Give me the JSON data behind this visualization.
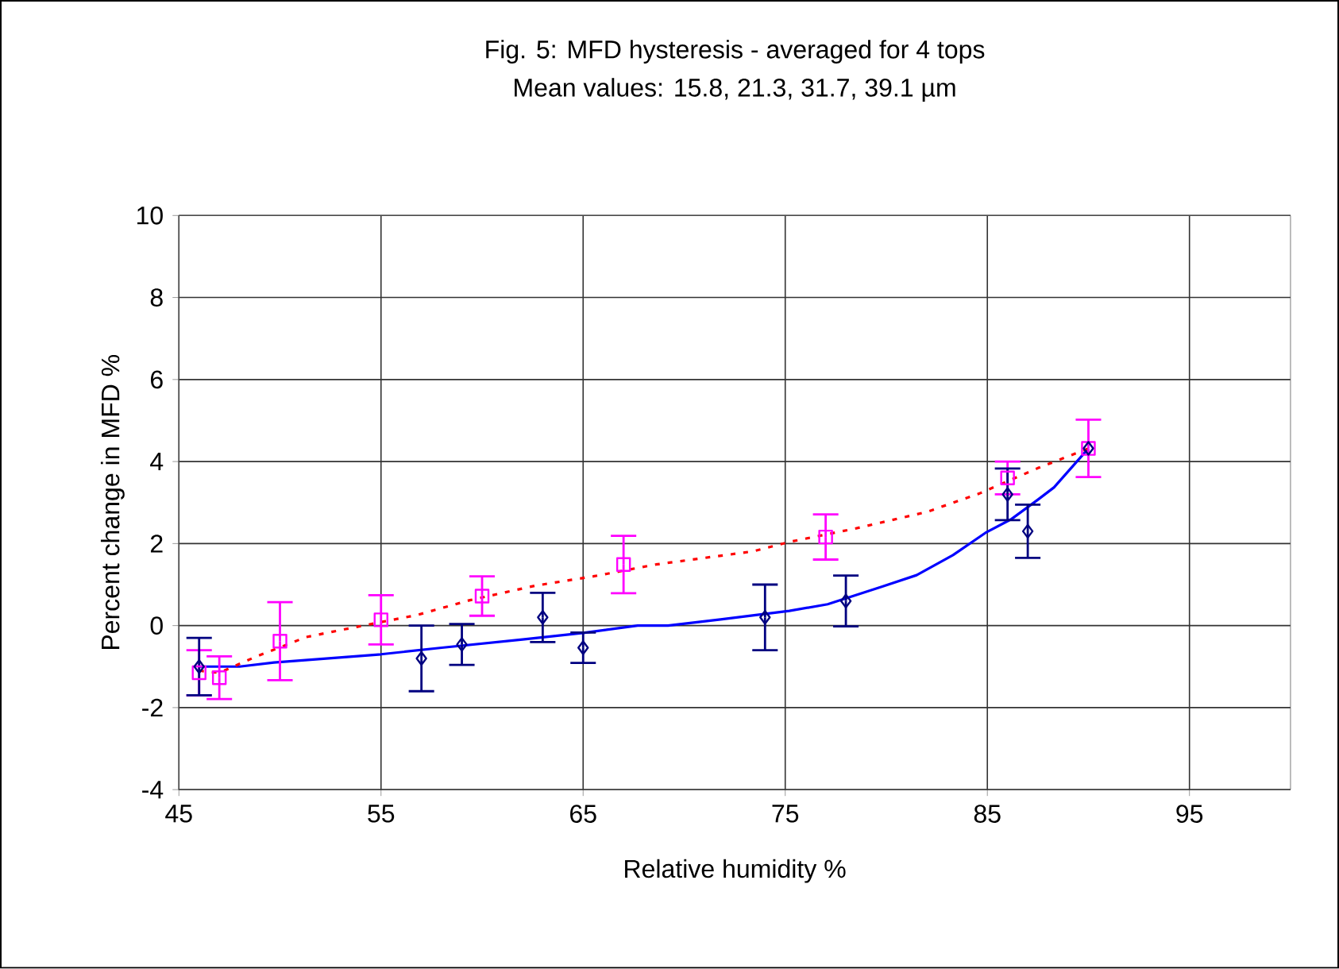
{
  "chart_data": {
    "type": "line",
    "title": "Fig. 5: MFD hysteresis - averaged for 4 tops",
    "subtitle": "Mean values: 15.8, 21.3, 31.7, 39.1 µm",
    "xlabel": "Relative humidity %",
    "ylabel": "Percent change in MFD %",
    "xlim": [
      45,
      100
    ],
    "xticks": [
      45,
      55,
      65,
      75,
      85,
      95
    ],
    "ylim": [
      -4,
      10
    ],
    "yticks": [
      -4,
      -2,
      0,
      2,
      4,
      6,
      8,
      10
    ],
    "grid": true,
    "series": [
      {
        "color": "#0000ff",
        "marker": "none",
        "line_style": "solid",
        "x": [
          46,
          48,
          49.7,
          55,
          58,
          62,
          65,
          67.7,
          69.2,
          71.8,
          75.2,
          77.1,
          79.8,
          81.5,
          83.3,
          84.9,
          86.2,
          87.5,
          88.3,
          90
        ],
        "values": [
          -1.0,
          -1.0,
          -0.9,
          -0.7,
          -0.54,
          -0.34,
          -0.18,
          0.0,
          0.0,
          0.15,
          0.36,
          0.52,
          0.95,
          1.23,
          1.72,
          2.26,
          2.6,
          3.07,
          3.37,
          4.32
        ]
      },
      {
        "color": "#ff0000",
        "marker": "none",
        "line_style": "dotted",
        "x": [
          46,
          47,
          48.8,
          51.3,
          53.2,
          56.8,
          59.4,
          62.6,
          65.5,
          68.6,
          73.4,
          75.2,
          78.4,
          82.0,
          84.6,
          87.5,
          90
        ],
        "values": [
          -1.1,
          -1.15,
          -0.76,
          -0.28,
          -0.09,
          0.26,
          0.62,
          0.97,
          1.2,
          1.49,
          1.81,
          2.04,
          2.36,
          2.77,
          3.22,
          3.84,
          4.32
        ]
      },
      {
        "type": "scatter",
        "color": "#ff00ff",
        "marker": "square",
        "x": [
          46,
          47,
          50,
          55,
          60,
          67,
          77,
          86,
          90
        ],
        "values": [
          -1.15,
          -1.27,
          -0.38,
          0.14,
          0.72,
          1.49,
          2.16,
          3.6,
          4.32
        ],
        "errors": [
          0.55,
          0.52,
          0.95,
          0.6,
          0.48,
          0.7,
          0.55,
          0.4,
          0.7
        ]
      },
      {
        "type": "scatter",
        "color": "#000080",
        "marker": "diamond",
        "x": [
          46,
          57,
          59,
          63,
          65,
          74,
          78,
          86,
          87,
          90
        ],
        "values": [
          -1.0,
          -0.8,
          -0.46,
          0.2,
          -0.54,
          0.2,
          0.6,
          3.2,
          2.3,
          4.32
        ],
        "errors": [
          0.7,
          0.8,
          0.5,
          0.6,
          0.37,
          0.8,
          0.62,
          0.63,
          0.65,
          null
        ]
      }
    ]
  }
}
